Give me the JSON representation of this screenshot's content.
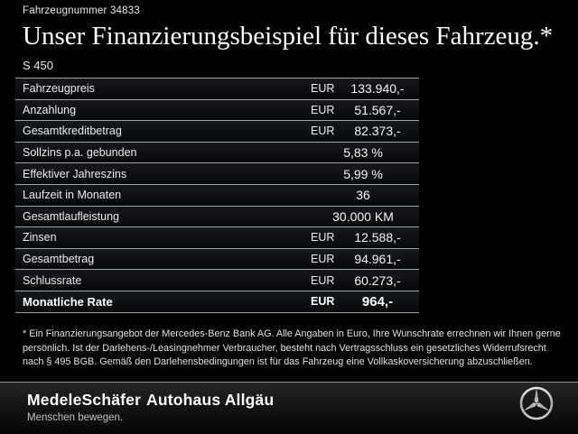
{
  "page": {
    "background_color": "#000000",
    "separator_color": "#99a1ab"
  },
  "header": {
    "vehicle_number": "Fahrzeugnummer 34833",
    "title": "Unser Finanzierungsbeispiel für dieses Fahrzeug.*",
    "model": "S 450"
  },
  "finance_table": {
    "rows": [
      {
        "label": "Fahrzeugpreis",
        "currency": "EUR",
        "value": "133.940,-",
        "bold": false
      },
      {
        "label": "Anzahlung",
        "currency": "EUR",
        "value": "51.567,-",
        "bold": false
      },
      {
        "label": "Gesamtkreditbetrag",
        "currency": "EUR",
        "value": "82.373,-",
        "bold": false
      },
      {
        "label": "Sollzins p.a. gebunden",
        "currency": "",
        "value": "5,83 %",
        "bold": false
      },
      {
        "label": "Effektiver Jahreszins",
        "currency": "",
        "value": "5,99 %",
        "bold": false
      },
      {
        "label": "Laufzeit in Monaten",
        "currency": "",
        "value": "36",
        "bold": false
      },
      {
        "label": "Gesamtlaufleistung",
        "currency": "",
        "value": "30.000 KM",
        "bold": false
      },
      {
        "label": "Zinsen",
        "currency": "EUR",
        "value": "12.588,-",
        "bold": false
      },
      {
        "label": "Gesamtbetrag",
        "currency": "EUR",
        "value": "94.961,-",
        "bold": false
      },
      {
        "label": "Schlussrate",
        "currency": "EUR",
        "value": "60.273,-",
        "bold": false
      },
      {
        "label": "Monatliche Rate",
        "currency": "EUR",
        "value": "964,-",
        "bold": true
      }
    ]
  },
  "disclaimer": "* Ein Finanzierungsangebot der Mercedes-Benz Bank AG. Alle Angaben in Euro, Ihre Wunschrate errechnen wir Ihnen gerne persönlich. Ist der Darlehens-/Leasingnehmer Verbraucher, besteht nach Vertragsschluss ein gesetzliches Widerrufsrecht nach § 495 BGB. Gemäß den Darlehensbedingungen ist für das Fahrzeug eine Vollkaskoversicherung abzuschließen.",
  "footer": {
    "dealer_logo": "MedeleSchäfer",
    "dealer_tagline": "Menschen bewegen.",
    "dealer_secondary": "Autohaus Allgäu",
    "brand_icon": "mercedes-star-icon"
  }
}
